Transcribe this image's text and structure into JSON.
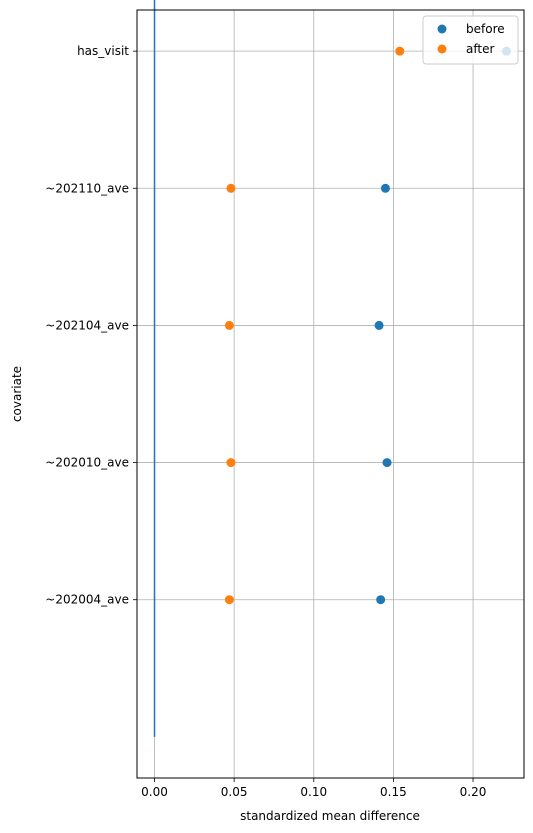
{
  "chart_data": {
    "type": "scatter",
    "xlabel": "standardized mean difference",
    "ylabel": "covariate",
    "categories": [
      "has_visit",
      "~202110_ave",
      "~202104_ave",
      "~202010_ave",
      "~202004_ave"
    ],
    "series": [
      {
        "name": "before",
        "color": "#1f77b4",
        "values": [
          0.221,
          0.145,
          0.141,
          0.146,
          0.142
        ]
      },
      {
        "name": "after",
        "color": "#ff7f0e",
        "values": [
          0.154,
          0.048,
          0.047,
          0.048,
          0.047
        ]
      }
    ],
    "xlim": [
      -0.011,
      0.232
    ],
    "xticks": [
      0.0,
      0.05,
      0.1,
      0.15,
      0.2
    ],
    "xtick_labels": [
      "0.00",
      "0.05",
      "0.10",
      "0.15",
      "0.20"
    ],
    "reference_line": {
      "x": 0.0,
      "color": "#1f77b4"
    },
    "grid": true,
    "legend_position": "top-right"
  }
}
